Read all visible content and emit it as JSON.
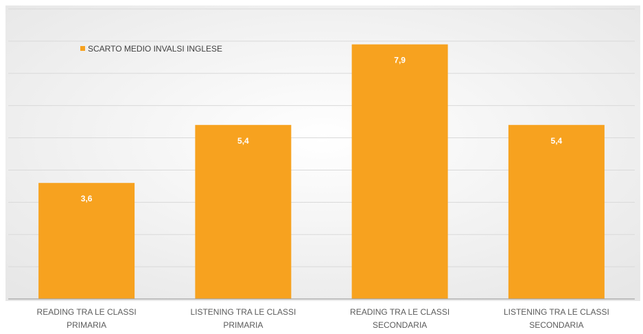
{
  "chart_data": {
    "type": "bar",
    "categories": [
      [
        "READING TRA LE CLASSI",
        "PRIMARIA"
      ],
      [
        "LISTENING TRA LE CLASSI",
        "PRIMARIA"
      ],
      [
        "READING TRA LE CLASSI",
        "SECONDARIA"
      ],
      [
        "LISTENING TRA LE CLASSI",
        "SECONDARIA"
      ]
    ],
    "series": [
      {
        "name": "SCARTO MEDIO INVALSI INGLESE",
        "values": [
          3.6,
          5.4,
          7.9,
          5.4
        ],
        "data_labels": [
          "3,6",
          "5,4",
          "7,9",
          "5,4"
        ]
      }
    ],
    "title": "",
    "xlabel": "",
    "ylabel": "",
    "ylim": [
      0,
      9
    ],
    "grid": true,
    "legend_position": "top-left",
    "colors": {
      "bar": "#f7a21f",
      "gridline": "#d9d9d9",
      "axis": "#a6a6a6",
      "background_center": "#ffffff",
      "background_edge": "#e7e7e7"
    }
  }
}
